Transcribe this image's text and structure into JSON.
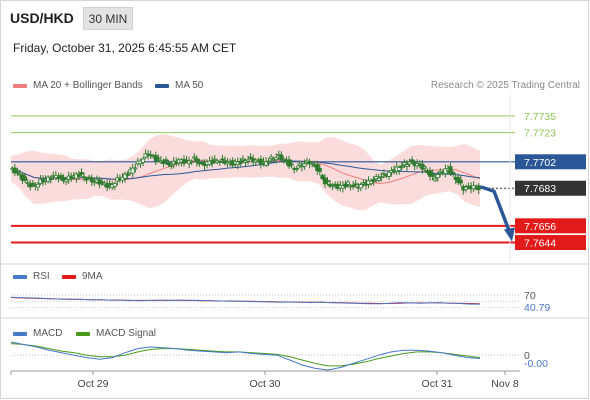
{
  "header": {
    "pair": "USD/HKD",
    "timeframe": "30 MIN",
    "timestamp": "Friday, October 31, 2025 6:45:55 AM CET"
  },
  "legend": {
    "ma20_label": "MA 20 + Bollinger Bands",
    "ma50_label": "MA 50",
    "copyright": "Research © 2025 Trading Central",
    "rsi_label": "RSI",
    "rsi_ma_label": "9MA",
    "macd_label": "MACD",
    "macd_signal_label": "MACD Signal"
  },
  "colors": {
    "ma20": "#f07d7d",
    "ma50": "#2b5797",
    "bollinger_fill": "#f9d6d6",
    "resistance": "#8fc85a",
    "support": "#e31a1a",
    "pivot": "#2b5797",
    "current": "#333333",
    "candle": "#2f7a2f",
    "rsi": "#4a78c8",
    "rsi_ma": "#e31a1a",
    "macd": "#4a78c8",
    "macd_signal": "#4a9a1a"
  },
  "chart_data": [
    {
      "type": "candlestick",
      "title": "USD/HKD 30 MIN",
      "x_ticks": [
        "Oct 29",
        "Oct 30",
        "Oct 31",
        "Nov 8"
      ],
      "price_ylim": [
        7.763,
        7.775
      ],
      "levels": {
        "resistance_2": 7.7735,
        "resistance_1": 7.7723,
        "pivot": 7.7702,
        "current": 7.7683,
        "support_1": 7.7656,
        "support_2": 7.7644
      },
      "level_labels": {
        "resistance_2": "7.7735",
        "resistance_1": "7.7723",
        "pivot": "7.7702",
        "current": "7.7683",
        "support_1": "7.7656",
        "support_2": "7.7644"
      },
      "close_series": [
        7.7697,
        7.7694,
        7.7688,
        7.7684,
        7.7688,
        7.769,
        7.7692,
        7.7689,
        7.7691,
        7.7693,
        7.769,
        7.7688,
        7.7687,
        7.7684,
        7.7689,
        7.7692,
        7.7697,
        7.7703,
        7.7708,
        7.7704,
        7.7702,
        7.77,
        7.7703,
        7.7702,
        7.7704,
        7.77,
        7.7702,
        7.7703,
        7.7702,
        7.7701,
        7.7702,
        7.7704,
        7.7703,
        7.7701,
        7.7704,
        7.7706,
        7.7702,
        7.7697,
        7.77,
        7.7702,
        7.7697,
        7.7687,
        7.7685,
        7.7684,
        7.7686,
        7.7684,
        7.7686,
        7.7688,
        7.7691,
        7.7693,
        7.7696,
        7.7699,
        7.7702,
        7.77,
        7.7697,
        7.769,
        7.7694,
        7.7697,
        7.769,
        7.7683,
        7.7684,
        7.7683
      ],
      "forecast_arrow": {
        "from": 7.7683,
        "to": 7.7644
      }
    },
    {
      "type": "line",
      "title": "RSI",
      "ylim": [
        0,
        100
      ],
      "reference": 70,
      "reference_label": "70",
      "current_label": "40.79",
      "rsi": [
        63,
        62,
        61,
        60,
        58,
        57,
        57,
        56,
        55,
        55,
        54,
        54,
        53,
        52,
        53,
        54,
        53,
        54,
        53,
        53,
        52,
        51,
        50,
        50,
        49,
        49,
        48,
        47,
        48,
        47,
        46,
        47,
        46,
        45,
        44,
        43,
        42,
        42,
        44,
        46,
        45,
        44,
        45,
        46,
        44,
        43,
        41,
        41
      ],
      "rsi_ma": [
        62,
        61,
        60,
        59,
        58,
        57,
        56,
        56,
        55,
        55,
        54,
        54,
        53,
        53,
        53,
        53,
        53,
        53,
        53,
        52,
        52,
        51,
        51,
        50,
        50,
        49,
        49,
        48,
        48,
        47,
        47,
        47,
        46,
        46,
        45,
        44,
        44,
        43,
        43,
        44,
        45,
        45,
        45,
        45,
        44,
        44,
        43,
        42
      ]
    },
    {
      "type": "line",
      "title": "MACD",
      "zero_label": "0",
      "current_label": "-0.00",
      "macd": [
        1.6,
        1.3,
        1.0,
        0.6,
        0.3,
        0.0,
        -0.3,
        -0.5,
        -0.3,
        0.3,
        0.8,
        1.0,
        0.9,
        0.8,
        0.6,
        0.5,
        0.4,
        0.3,
        0.4,
        0.2,
        0.1,
        0.0,
        -0.6,
        -1.2,
        -1.6,
        -1.8,
        -1.5,
        -1.0,
        -0.5,
        0.0,
        0.4,
        0.6,
        0.6,
        0.5,
        0.3,
        0.0,
        -0.3,
        -0.4
      ],
      "macd_signal": [
        1.4,
        1.3,
        1.1,
        0.8,
        0.5,
        0.3,
        0.0,
        -0.2,
        -0.2,
        0.0,
        0.4,
        0.7,
        0.8,
        0.8,
        0.7,
        0.6,
        0.5,
        0.4,
        0.4,
        0.3,
        0.2,
        0.1,
        -0.2,
        -0.6,
        -1.0,
        -1.3,
        -1.3,
        -1.1,
        -0.8,
        -0.4,
        -0.1,
        0.2,
        0.4,
        0.4,
        0.3,
        0.1,
        -0.1,
        -0.3
      ]
    }
  ]
}
